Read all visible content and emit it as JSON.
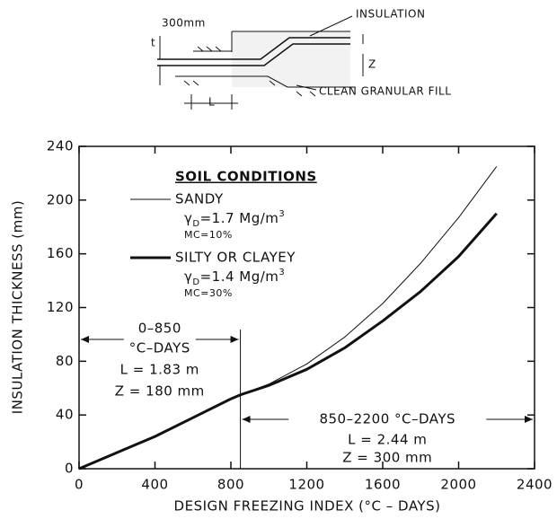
{
  "diagram": {
    "spacing_label": "300mm",
    "insulation_label": "INSULATION",
    "fill_label": "CLEAN GRANULAR FILL",
    "t_label": "t",
    "z_label": "Z",
    "l_label": "L"
  },
  "chart_data": {
    "type": "line",
    "xlabel": "DESIGN FREEZING INDEX (°C – DAYS)",
    "ylabel": "INSULATION THICKNESS (mm)",
    "legend_title": "SOIL CONDITIONS",
    "x": [
      0,
      200,
      400,
      600,
      800,
      850,
      1000,
      1200,
      1400,
      1600,
      1800,
      2000,
      2200
    ],
    "series": [
      {
        "name": "SANDY",
        "color": "#111111",
        "line_width": 1,
        "density_parts": [
          "γ",
          "D",
          "=1.7 Mg/m",
          "3"
        ],
        "moisture": "MC=10%",
        "values": [
          0,
          12,
          24,
          38,
          52,
          55,
          63,
          78,
          98,
          123,
          153,
          187,
          225
        ]
      },
      {
        "name": "SILTY OR CLAYEY",
        "color": "#111111",
        "line_width": 3,
        "density_parts": [
          "γ",
          "D",
          "=1.4 Mg/m",
          "3"
        ],
        "moisture": "MC=30%",
        "values": [
          0,
          12,
          24,
          38,
          52,
          55,
          62,
          74,
          90,
          110,
          132,
          158,
          190
        ]
      }
    ],
    "annotations": [
      {
        "lines": [
          "0–850",
          "°C–DAYS",
          "L = 1.83 m",
          "Z = 180 mm"
        ]
      },
      {
        "lines": [
          "850–2200 °C–DAYS",
          "L = 2.44 m",
          "Z = 300 mm"
        ]
      }
    ],
    "xlim": [
      0,
      2400
    ],
    "xticks": [
      0,
      400,
      800,
      1200,
      1600,
      2000,
      2400
    ],
    "ylim": [
      0,
      240
    ],
    "yticks": [
      0,
      40,
      80,
      120,
      160,
      200,
      240
    ]
  }
}
